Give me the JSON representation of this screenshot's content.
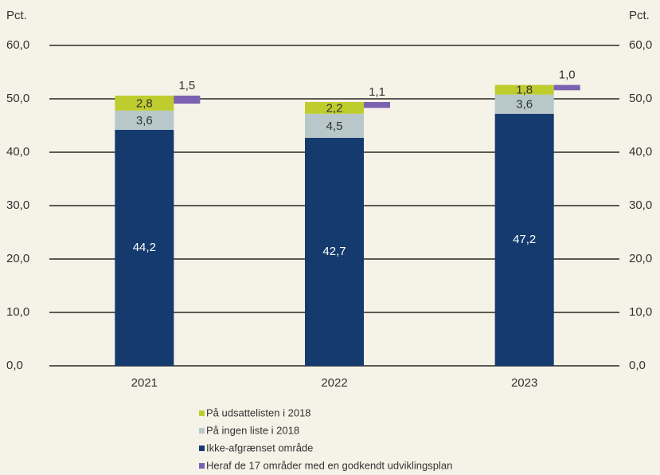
{
  "chart_data": {
    "type": "bar",
    "y_label": "Pct.",
    "y2_label": "Pct.",
    "categories": [
      "2021",
      "2022",
      "2023"
    ],
    "series": [
      {
        "name": "Ikke-afgrænset område",
        "color": "#143a6e",
        "values": [
          44.2,
          42.7,
          47.2
        ],
        "value_labels": [
          "44,2",
          "42,7",
          "47,2"
        ]
      },
      {
        "name": "På ingen liste i 2018",
        "color": "#b8c8ca",
        "values": [
          3.6,
          4.5,
          3.6
        ],
        "value_labels": [
          "3,6",
          "4,5",
          "3,6"
        ]
      },
      {
        "name": "På udsattelisten i 2018",
        "color": "#bfcc2e",
        "values": [
          2.8,
          2.2,
          1.8
        ],
        "value_labels": [
          "2,8",
          "2,2",
          "1,8"
        ]
      },
      {
        "name": "Heraf de 17 områder med en godkendt udviklingsplan",
        "color": "#7b62b0",
        "values": [
          1.5,
          1.1,
          1.0
        ],
        "value_labels": [
          "1,5",
          "1,1",
          "1,0"
        ],
        "position": "beside"
      }
    ],
    "ylim": [
      0,
      60
    ],
    "yticks": [
      {
        "value": 0,
        "label": "0,0"
      },
      {
        "value": 10,
        "label": "10,0"
      },
      {
        "value": 20,
        "label": "20,0"
      },
      {
        "value": 30,
        "label": "30,0"
      },
      {
        "value": 40,
        "label": "40,0"
      },
      {
        "value": 50,
        "label": "50,0"
      },
      {
        "value": 60,
        "label": "60,0"
      }
    ],
    "y2lim": [
      0,
      60
    ],
    "y2ticks": [
      {
        "value": 0,
        "label": "0,0"
      },
      {
        "value": 10,
        "label": "10,0"
      },
      {
        "value": 20,
        "label": "20,0"
      },
      {
        "value": 30,
        "label": "30,0"
      },
      {
        "value": 40,
        "label": "40,0"
      },
      {
        "value": 50,
        "label": "50,0"
      },
      {
        "value": 60,
        "label": "60,0"
      }
    ],
    "grid": true
  }
}
